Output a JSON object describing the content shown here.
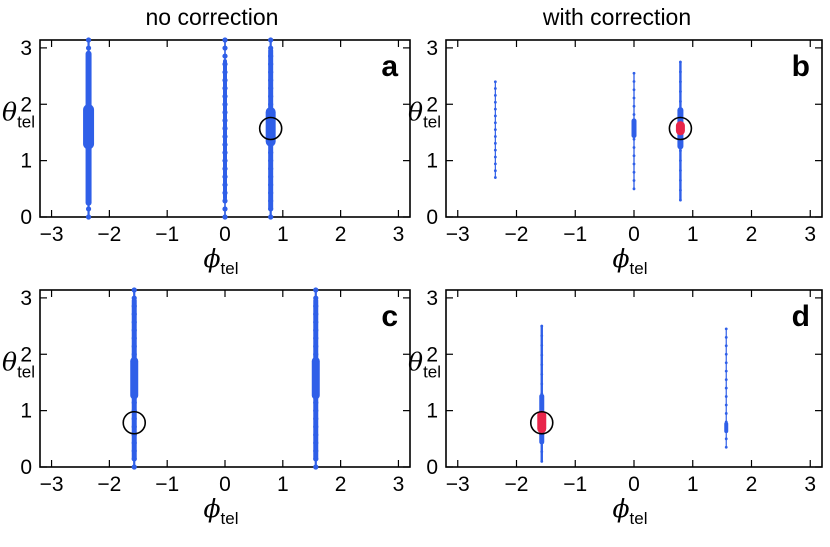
{
  "column_titles": [
    "no correction",
    "with correction"
  ],
  "colors": {
    "points": "#2f5fe8",
    "highlight": "#e8254a",
    "circle": "#000000",
    "frame": "#000000"
  },
  "chart_data": [
    {
      "type": "scatter",
      "panel_label": "a",
      "column": "no correction",
      "xlabel": {
        "symbol": "ϕ",
        "subscript": "tel"
      },
      "ylabel": {
        "symbol": "θ",
        "subscript": "tel"
      },
      "xlim": [
        -3.2,
        3.2
      ],
      "ylim": [
        0,
        3.14
      ],
      "xticks": [
        -3,
        -2,
        -1,
        0,
        1,
        2,
        3
      ],
      "yticks": [
        0,
        1,
        2,
        3
      ],
      "series": [
        {
          "name": "points",
          "style": "thick",
          "lines": [
            {
              "x": -2.36,
              "y0": 0.0,
              "y1": 3.14,
              "width": 2.2
            },
            {
              "x": 0.0,
              "y0": 0.0,
              "y1": 3.14,
              "width": 1.6
            },
            {
              "x": 0.79,
              "y0": 0.0,
              "y1": 3.14,
              "width": 2.2
            }
          ],
          "blobs": [
            {
              "x": -2.36,
              "y0": 0.2,
              "y1": 2.95,
              "width": 6
            },
            {
              "x": -2.36,
              "y0": 1.2,
              "y1": 2.0,
              "width": 11
            },
            {
              "x": 0.0,
              "y0": 0.3,
              "y1": 2.8,
              "width": 4
            },
            {
              "x": 0.79,
              "y0": 0.1,
              "y1": 3.0,
              "width": 5
            },
            {
              "x": 0.79,
              "y0": 1.25,
              "y1": 1.95,
              "width": 10
            }
          ]
        }
      ],
      "target_circle": {
        "x": 0.79,
        "y": 1.57
      }
    },
    {
      "type": "scatter",
      "panel_label": "b",
      "column": "with correction",
      "xlabel": {
        "symbol": "ϕ",
        "subscript": "tel"
      },
      "ylabel": {
        "symbol": "θ",
        "subscript": "tel"
      },
      "xlim": [
        -3.2,
        3.2
      ],
      "ylim": [
        0,
        3.14
      ],
      "xticks": [
        -3,
        -2,
        -1,
        0,
        1,
        2,
        3
      ],
      "yticks": [
        0,
        1,
        2,
        3
      ],
      "series": [
        {
          "name": "points",
          "style": "sparse",
          "lines": [
            {
              "x": -2.36,
              "y0": 0.7,
              "y1": 2.4,
              "width": 1.2
            },
            {
              "x": 0.0,
              "y0": 0.5,
              "y1": 2.55,
              "width": 1.3
            },
            {
              "x": 0.79,
              "y0": 0.3,
              "y1": 2.75,
              "width": 2.4
            }
          ],
          "blobs": [
            {
              "x": 0.0,
              "y0": 1.4,
              "y1": 1.75,
              "width": 5
            },
            {
              "x": 0.79,
              "y0": 1.2,
              "y1": 1.95,
              "width": 6
            }
          ]
        }
      ],
      "highlight": {
        "x": 0.79,
        "y0": 1.45,
        "y1": 1.7
      },
      "target_circle": {
        "x": 0.79,
        "y": 1.57
      }
    },
    {
      "type": "scatter",
      "panel_label": "c",
      "column": "no correction",
      "xlabel": {
        "symbol": "ϕ",
        "subscript": "tel"
      },
      "ylabel": {
        "symbol": "θ",
        "subscript": "tel"
      },
      "xlim": [
        -3.2,
        3.2
      ],
      "ylim": [
        0,
        3.14
      ],
      "xticks": [
        -3,
        -2,
        -1,
        0,
        1,
        2,
        3
      ],
      "yticks": [
        0,
        1,
        2,
        3
      ],
      "series": [
        {
          "name": "points",
          "style": "thick",
          "lines": [
            {
              "x": -1.57,
              "y0": 0.0,
              "y1": 3.14,
              "width": 2.2
            },
            {
              "x": 1.57,
              "y0": 0.0,
              "y1": 3.14,
              "width": 2.2
            }
          ],
          "blobs": [
            {
              "x": -1.57,
              "y0": 0.1,
              "y1": 3.0,
              "width": 5
            },
            {
              "x": -1.57,
              "y0": 1.2,
              "y1": 1.95,
              "width": 8
            },
            {
              "x": 1.57,
              "y0": 0.1,
              "y1": 3.0,
              "width": 5
            },
            {
              "x": 1.57,
              "y0": 1.2,
              "y1": 1.95,
              "width": 8
            }
          ]
        }
      ],
      "target_circle": {
        "x": -1.57,
        "y": 0.785
      }
    },
    {
      "type": "scatter",
      "panel_label": "d",
      "column": "with correction",
      "xlabel": {
        "symbol": "ϕ",
        "subscript": "tel"
      },
      "ylabel": {
        "symbol": "θ",
        "subscript": "tel"
      },
      "xlim": [
        -3.2,
        3.2
      ],
      "ylim": [
        0,
        3.14
      ],
      "xticks": [
        -3,
        -2,
        -1,
        0,
        1,
        2,
        3
      ],
      "yticks": [
        0,
        1,
        2,
        3
      ],
      "series": [
        {
          "name": "points",
          "style": "sparse",
          "lines": [
            {
              "x": -1.57,
              "y0": 0.1,
              "y1": 2.5,
              "width": 2.4
            },
            {
              "x": 1.57,
              "y0": 0.35,
              "y1": 2.45,
              "width": 1.2
            }
          ],
          "blobs": [
            {
              "x": -1.57,
              "y0": 0.4,
              "y1": 1.3,
              "width": 5
            },
            {
              "x": 1.57,
              "y0": 0.6,
              "y1": 0.8,
              "width": 4
            }
          ]
        }
      ],
      "highlight": {
        "x": -1.57,
        "y0": 0.6,
        "y1": 1.0
      },
      "target_circle": {
        "x": -1.57,
        "y": 0.785
      }
    }
  ]
}
